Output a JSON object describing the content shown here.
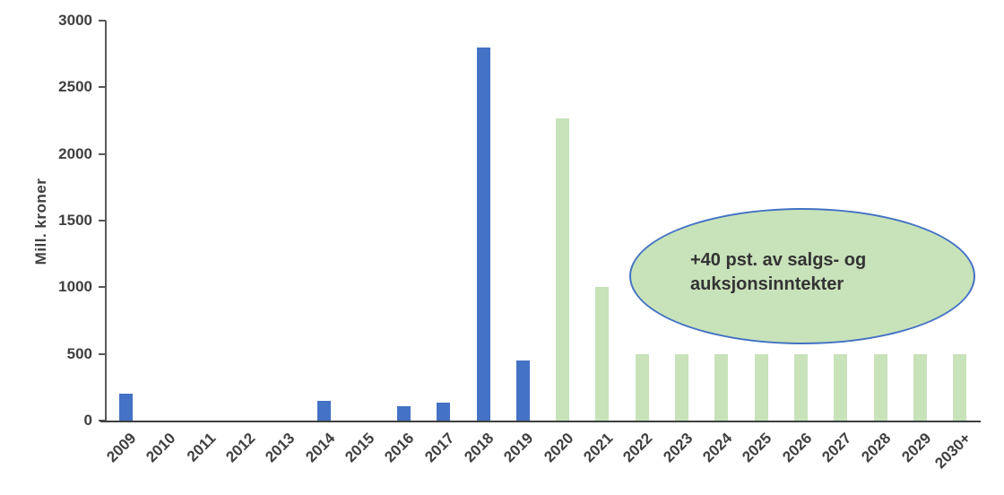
{
  "page": {
    "background": "#ffffff"
  },
  "chart_data": {
    "type": "bar",
    "title": "",
    "xlabel": "",
    "ylabel": "Mill. kroner",
    "ylim": [
      0,
      3000
    ],
    "yticks": [
      0,
      500,
      1000,
      1500,
      2000,
      2500,
      3000
    ],
    "grid": false,
    "legend": "none",
    "categories": [
      "2009",
      "2010",
      "2011",
      "2012",
      "2013",
      "2014",
      "2015",
      "2016",
      "2017",
      "2018",
      "2019",
      "2020",
      "2021",
      "2022",
      "2023",
      "2024",
      "2025",
      "2026",
      "2027",
      "2028",
      "2029",
      "2030+"
    ],
    "values": [
      200,
      0,
      0,
      0,
      0,
      150,
      0,
      110,
      135,
      2800,
      450,
      2270,
      1000,
      500,
      500,
      500,
      500,
      500,
      500,
      500,
      500,
      500
    ],
    "bar_color_keys": [
      "blue",
      "blue",
      "blue",
      "blue",
      "blue",
      "blue",
      "blue",
      "blue",
      "blue",
      "blue",
      "blue",
      "green",
      "green",
      "green",
      "green",
      "green",
      "green",
      "green",
      "green",
      "green",
      "green",
      "green"
    ],
    "palette": {
      "blue": "#4472c4",
      "green": "#c8e2ba"
    }
  },
  "annotation": {
    "line1": "+40 pst. av salgs- og",
    "line2": "auksjonsinntekter",
    "fill": "#c8e2ba",
    "border_color": "#4472c4",
    "text_color": "#333333"
  },
  "axis": {
    "line_color": "#3f3f3f",
    "tick_color": "#595959",
    "text_color": "#3f3f3f"
  }
}
